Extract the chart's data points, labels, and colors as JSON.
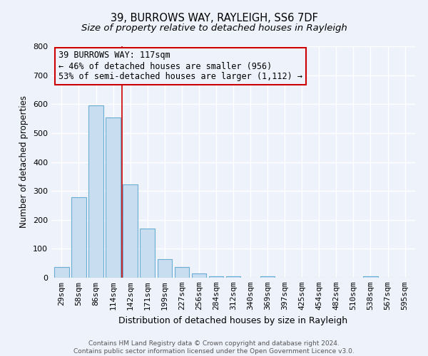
{
  "title": "39, BURROWS WAY, RAYLEIGH, SS6 7DF",
  "subtitle": "Size of property relative to detached houses in Rayleigh",
  "xlabel": "Distribution of detached houses by size in Rayleigh",
  "ylabel": "Number of detached properties",
  "bar_labels": [
    "29sqm",
    "58sqm",
    "86sqm",
    "114sqm",
    "142sqm",
    "171sqm",
    "199sqm",
    "227sqm",
    "256sqm",
    "284sqm",
    "312sqm",
    "340sqm",
    "369sqm",
    "397sqm",
    "425sqm",
    "454sqm",
    "482sqm",
    "510sqm",
    "538sqm",
    "567sqm",
    "595sqm"
  ],
  "bar_values": [
    38,
    278,
    595,
    553,
    323,
    170,
    63,
    38,
    14,
    5,
    5,
    0,
    5,
    0,
    0,
    0,
    0,
    0,
    5,
    0,
    0
  ],
  "bar_color": "#c8ddf0",
  "bar_edge_color": "#6aaed6",
  "bg_color": "#eef2fb",
  "grid_color": "#ffffff",
  "annotation_text_line1": "39 BURROWS WAY: 117sqm",
  "annotation_text_line2": "← 46% of detached houses are smaller (956)",
  "annotation_text_line3": "53% of semi-detached houses are larger (1,112) →",
  "annotation_box_edge": "#cc0000",
  "vline_color": "#cc0000",
  "vline_x": 3.5,
  "ylim": [
    0,
    800
  ],
  "yticks": [
    0,
    100,
    200,
    300,
    400,
    500,
    600,
    700,
    800
  ],
  "footer_line1": "Contains HM Land Registry data © Crown copyright and database right 2024.",
  "footer_line2": "Contains public sector information licensed under the Open Government Licence v3.0.",
  "title_fontsize": 10.5,
  "subtitle_fontsize": 9.5,
  "ylabel_fontsize": 8.5,
  "xlabel_fontsize": 9,
  "tick_fontsize": 8,
  "annot_fontsize": 8.5,
  "footer_fontsize": 6.5
}
